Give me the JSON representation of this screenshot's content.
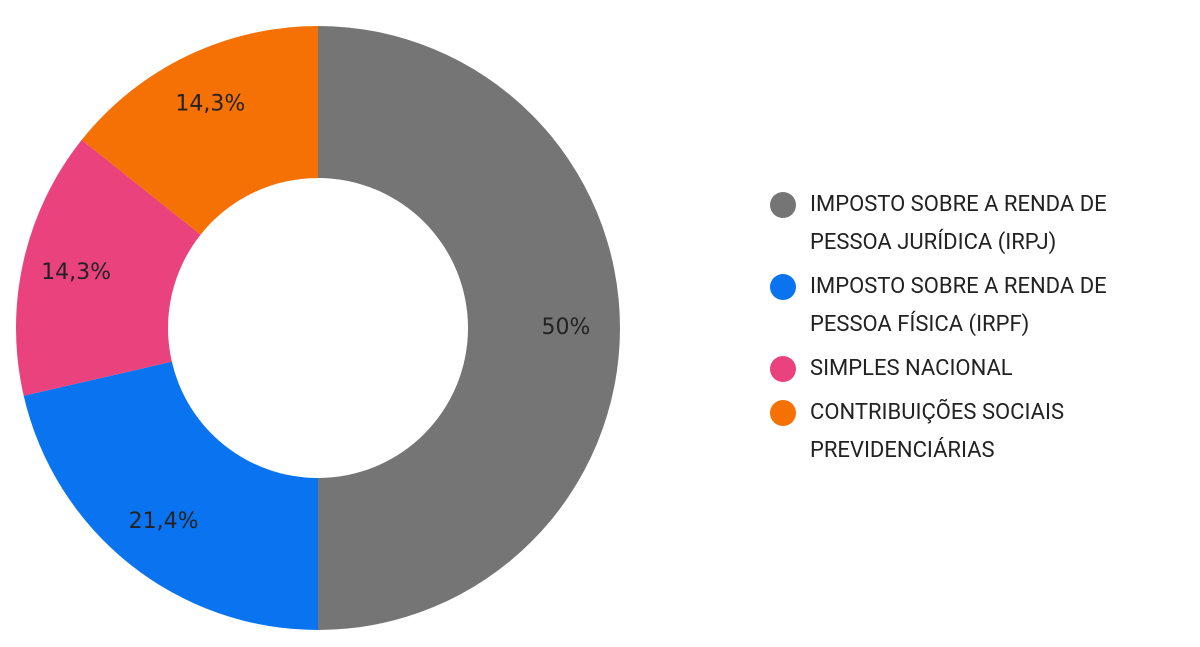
{
  "chart_data": {
    "type": "pie",
    "categories": [
      "IMPOSTO SOBRE A RENDA DE PESSOA JURÍDICA (IRPJ)",
      "IMPOSTO SOBRE A RENDA DE PESSOA FÍSICA (IRPF)",
      "SIMPLES NACIONAL",
      "CONTRIBUIÇÕES SOCIAIS PREVIDENCIÁRIAS"
    ],
    "values": [
      50,
      21.4,
      14.3,
      14.3
    ],
    "value_labels": [
      "50%",
      "21,4%",
      "14,3%",
      "14,3%"
    ],
    "colors": [
      "#757575",
      "#0a74f0",
      "#ea427c",
      "#f57103"
    ],
    "legend": "right"
  }
}
